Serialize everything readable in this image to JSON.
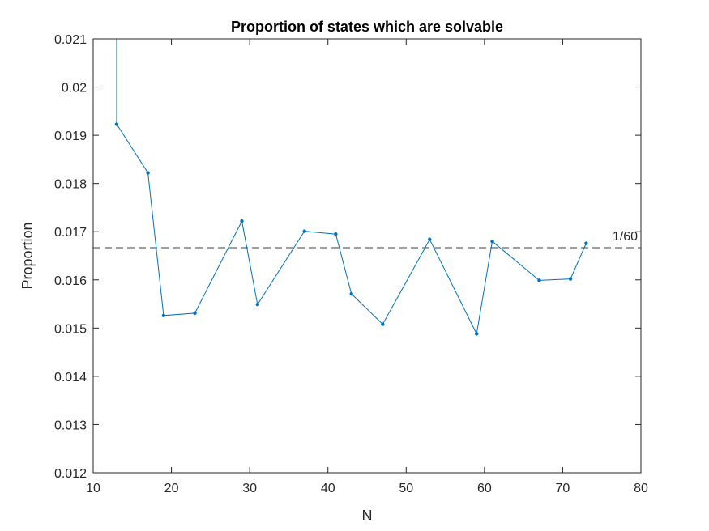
{
  "chart_data": {
    "type": "line",
    "title": "Proportion of states which are solvable",
    "xlabel": "N",
    "ylabel": "Proportion",
    "xlim": [
      10,
      80
    ],
    "ylim": [
      0.012,
      0.021
    ],
    "xticks": [
      "10",
      "20",
      "30",
      "40",
      "50",
      "60",
      "70",
      "80"
    ],
    "yticks": [
      "0.012",
      "0.013",
      "0.014",
      "0.015",
      "0.016",
      "0.017",
      "0.018",
      "0.019",
      "0.02",
      "0.021"
    ],
    "grid": false,
    "series": [
      {
        "color": "#0072BD",
        "x": [
          13,
          13,
          17,
          19,
          23,
          29,
          31,
          37,
          41,
          43,
          47,
          53,
          59,
          61,
          67,
          71,
          73
        ],
        "y": [
          0.0215,
          0.01923,
          0.01822,
          0.01526,
          0.01531,
          0.01722,
          0.01549,
          0.01701,
          0.01695,
          0.01571,
          0.01508,
          0.01684,
          0.01488,
          0.0168,
          0.01599,
          0.01602,
          0.01676
        ]
      }
    ],
    "reference_line": {
      "y": 0.016667,
      "label": "1/60",
      "color": "#404040"
    }
  }
}
